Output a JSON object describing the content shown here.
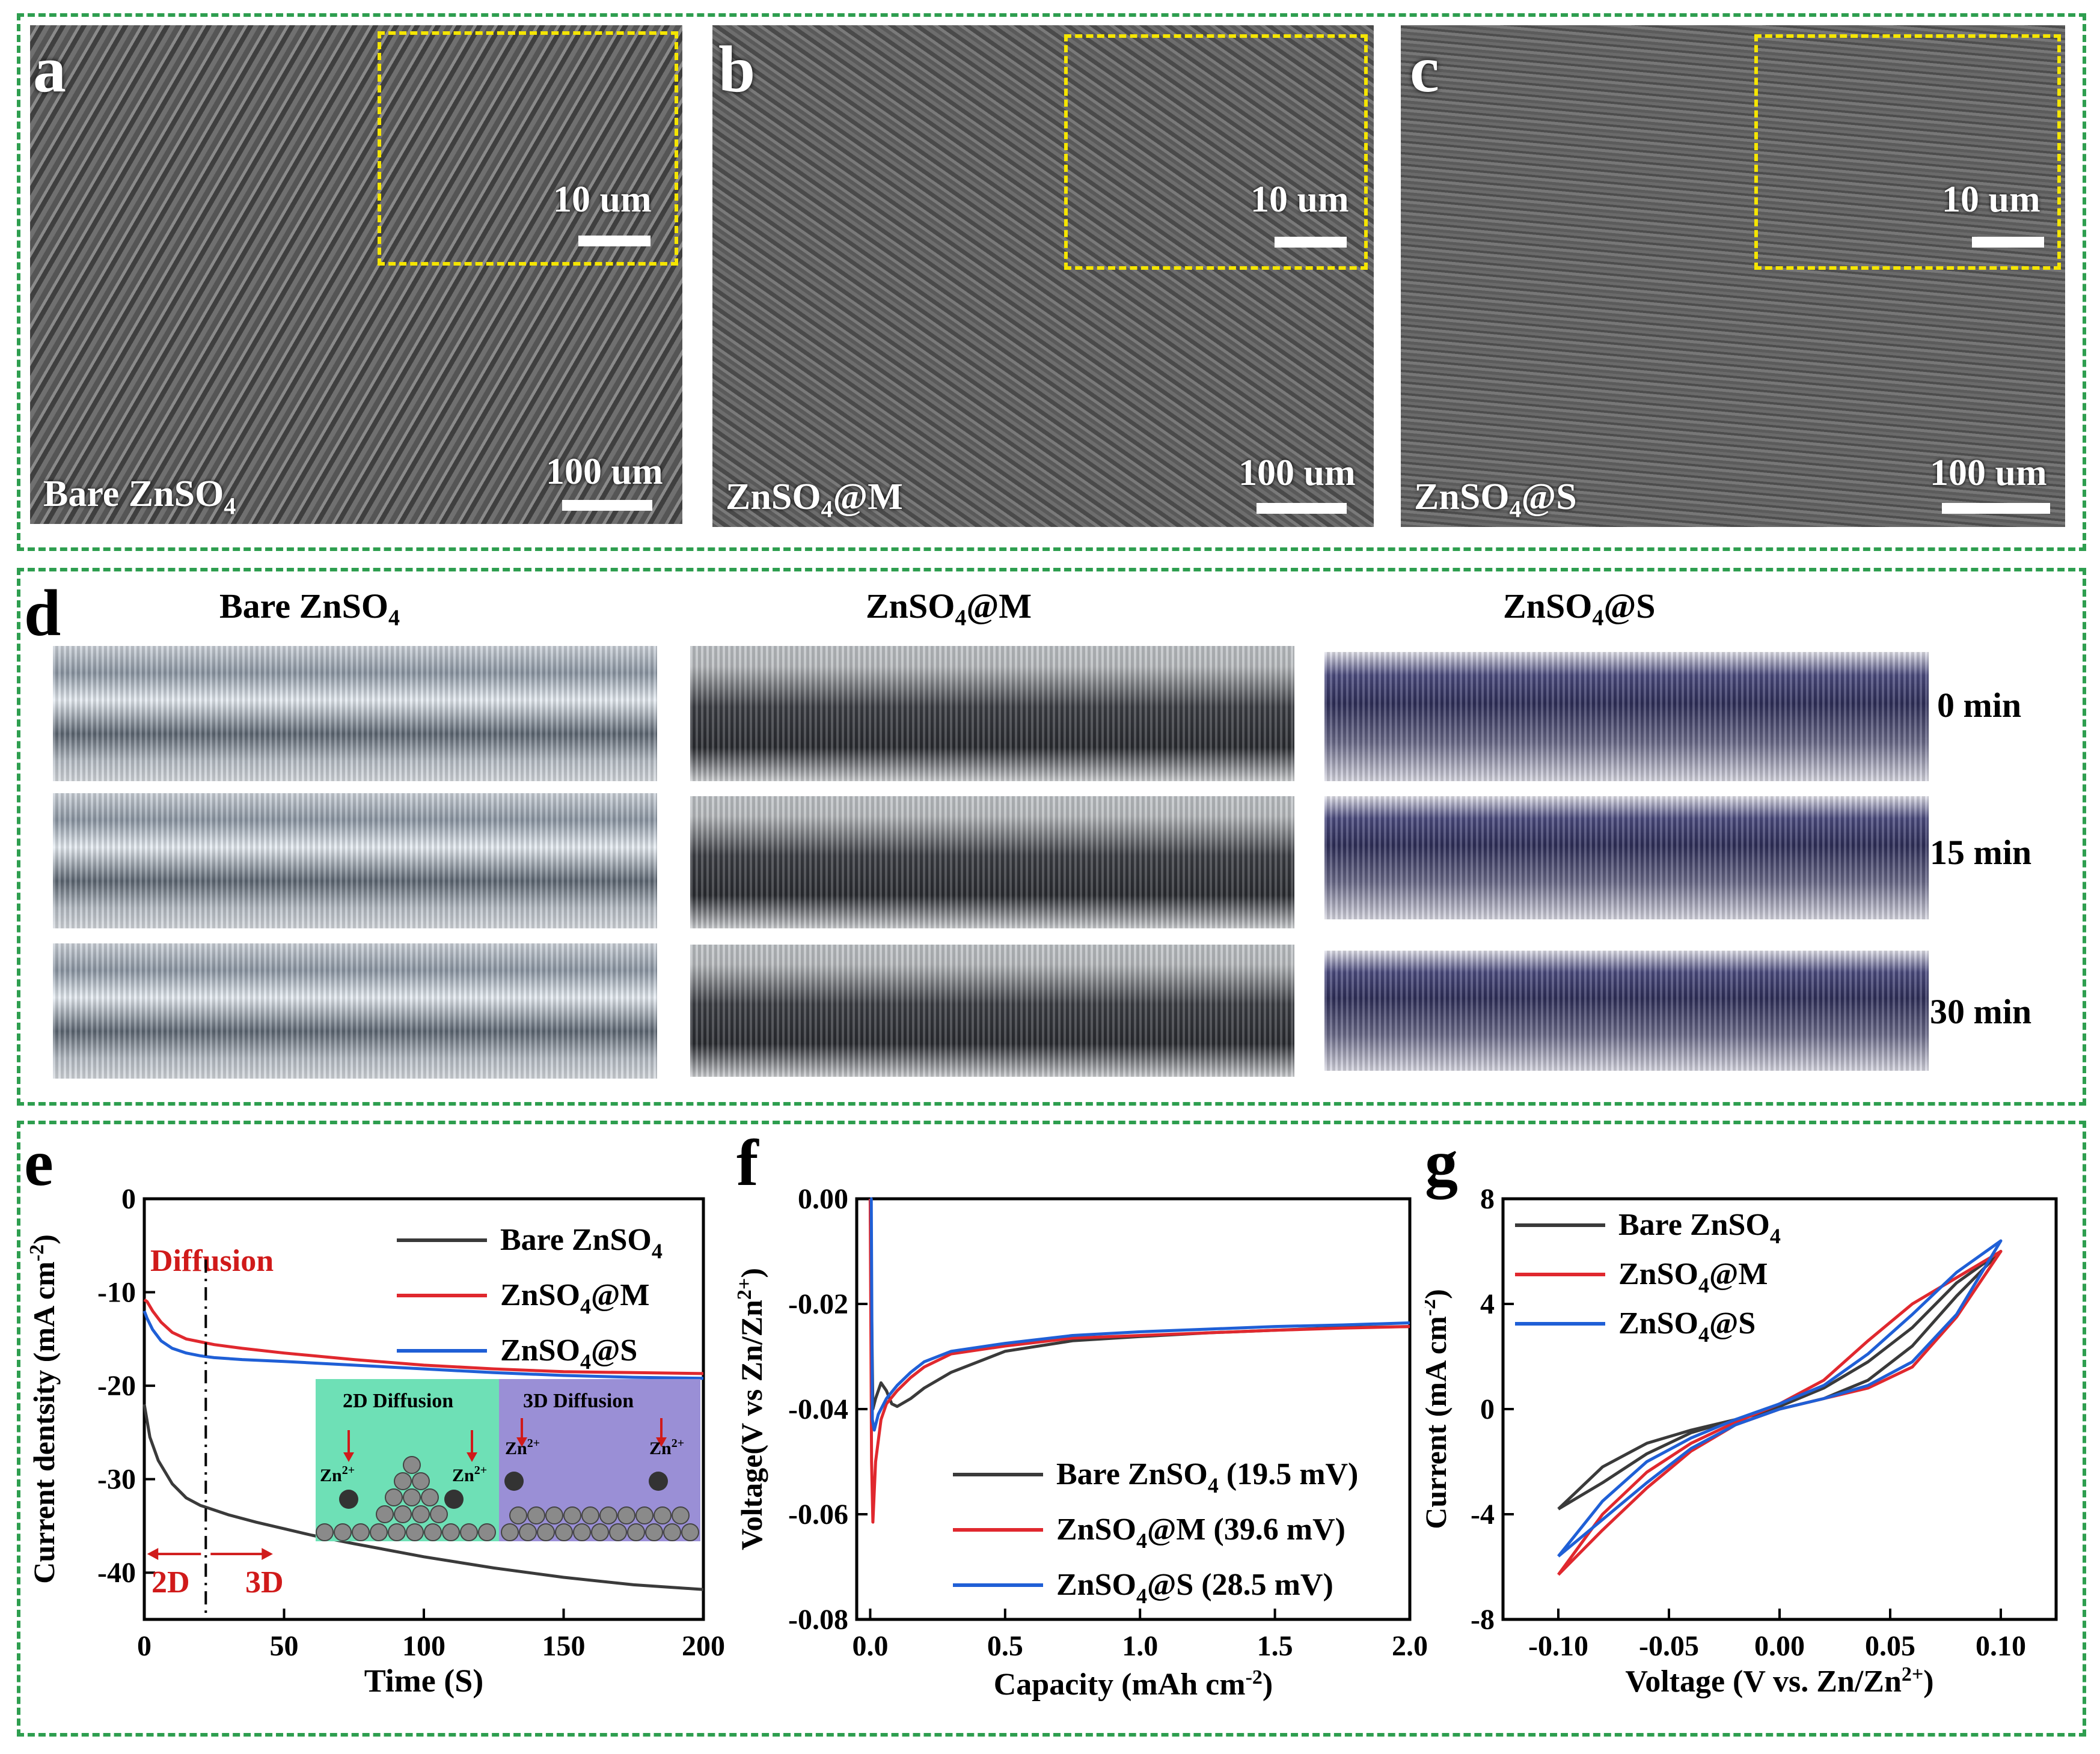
{
  "panels": {
    "a": {
      "letter": "a",
      "label": "Bare ZnSO",
      "label_sub": "4",
      "inset_scale": "10 um",
      "scale": "100 um"
    },
    "b": {
      "letter": "b",
      "label": "ZnSO",
      "label_sub": "4",
      "label_tail": "@M",
      "inset_scale": "10 um",
      "scale": "100 um"
    },
    "c": {
      "letter": "c",
      "label": "ZnSO",
      "label_sub": "4",
      "label_tail": "@S",
      "inset_scale": "10 um",
      "scale": "100 um"
    },
    "d": {
      "letter": "d",
      "columns": [
        {
          "label": "Bare ZnSO",
          "sub": "4",
          "tail": ""
        },
        {
          "label": "ZnSO",
          "sub": "4",
          "tail": "@M"
        },
        {
          "label": "ZnSO",
          "sub": "4",
          "tail": "@S"
        }
      ],
      "times": [
        "0 min",
        "15 min",
        "30 min"
      ]
    },
    "e": {
      "letter": "e"
    },
    "f": {
      "letter": "f"
    },
    "g": {
      "letter": "g"
    }
  },
  "colors": {
    "box": "#2e9e4f",
    "inset": "#f5e500",
    "bare": "#3a3a3a",
    "m": "#e0282e",
    "s": "#1f5fd6",
    "annot": "#d01a1a"
  },
  "chart_data": [
    {
      "id": "e",
      "type": "line",
      "xlabel": "Time (S)",
      "ylabel": "Current dentsity (mA cm",
      "ylabel_sup": "-2",
      "ylabel_tail": ")",
      "xlim": [
        0,
        200
      ],
      "ylim": [
        -45,
        0
      ],
      "xticks": [
        "0",
        "50",
        "100",
        "150",
        "200"
      ],
      "yticks": [
        "0",
        "-10",
        "-20",
        "-30",
        "-40"
      ],
      "annotations": {
        "diffusion": "Diffusion",
        "left": "2D",
        "right": "3D",
        "divider_x": 22
      },
      "inset": {
        "left_title": "2D Diffusion",
        "right_title": "3D Diffusion",
        "ion": "Zn",
        "ion_sup": "2+"
      },
      "legend": [
        {
          "name": "Bare ZnSO",
          "sub": "4",
          "tail": ""
        },
        {
          "name": "ZnSO",
          "sub": "4",
          "tail": "@M"
        },
        {
          "name": "ZnSO",
          "sub": "4",
          "tail": "@S"
        }
      ],
      "series": [
        {
          "key": "bare",
          "x": [
            0,
            2,
            5,
            10,
            15,
            20,
            22,
            30,
            40,
            50,
            60,
            75,
            100,
            125,
            150,
            175,
            200
          ],
          "y": [
            -22,
            -25.5,
            -28,
            -30.5,
            -32,
            -32.8,
            -33,
            -33.8,
            -34.6,
            -35.3,
            -36,
            -36.9,
            -38.3,
            -39.5,
            -40.5,
            -41.3,
            -41.8
          ]
        },
        {
          "key": "m",
          "x": [
            0,
            1,
            3,
            6,
            10,
            15,
            20,
            25,
            35,
            50,
            75,
            100,
            125,
            150,
            175,
            200
          ],
          "y": [
            -10.8,
            -11,
            -12,
            -13.2,
            -14.3,
            -15,
            -15.3,
            -15.6,
            -16,
            -16.5,
            -17.2,
            -17.8,
            -18.2,
            -18.5,
            -18.6,
            -18.7
          ]
        },
        {
          "key": "s",
          "x": [
            0,
            1,
            3,
            6,
            10,
            15,
            20,
            25,
            35,
            50,
            75,
            100,
            125,
            150,
            175,
            200
          ],
          "y": [
            -12,
            -12.8,
            -14,
            -15.2,
            -16,
            -16.5,
            -16.8,
            -17,
            -17.2,
            -17.4,
            -17.8,
            -18.2,
            -18.6,
            -18.9,
            -19.1,
            -19.2
          ]
        }
      ]
    },
    {
      "id": "f",
      "type": "line",
      "xlabel": "Capacity (mAh cm",
      "xlabel_sup": "-2",
      "xlabel_tail": ")",
      "ylabel": "Voltage(V vs Zn/Zn",
      "ylabel_sup": "2+",
      "ylabel_tail": ")",
      "xlim": [
        -0.05,
        2.0
      ],
      "ylim": [
        -0.08,
        0.0
      ],
      "xticks": [
        0.0,
        0.5,
        1.0,
        1.5,
        2.0
      ],
      "xtick_labels": [
        "0.0",
        "0.5",
        "1.0",
        "1.5",
        "2.0"
      ],
      "yticks": [
        0.0,
        -0.02,
        -0.04,
        -0.06,
        -0.08
      ],
      "ytick_labels": [
        "0.00",
        "-0.02",
        "-0.04",
        "-0.06",
        "-0.08"
      ],
      "legend": [
        {
          "name": "Bare ZnSO",
          "sub": "4",
          "tail": " (19.5 mV)"
        },
        {
          "name": "ZnSO",
          "sub": "4",
          "tail": "@M (39.6 mV)"
        },
        {
          "name": "ZnSO",
          "sub": "4",
          "tail": "@S (28.5 mV)"
        }
      ],
      "series": [
        {
          "key": "bare",
          "x": [
            0.0,
            0.01,
            0.02,
            0.04,
            0.06,
            0.08,
            0.1,
            0.15,
            0.2,
            0.3,
            0.5,
            0.75,
            1.0,
            1.25,
            1.5,
            1.75,
            2.0
          ],
          "y": [
            0.0,
            -0.04,
            -0.038,
            -0.035,
            -0.0365,
            -0.039,
            -0.0395,
            -0.038,
            -0.036,
            -0.033,
            -0.029,
            -0.027,
            -0.0262,
            -0.0255,
            -0.025,
            -0.0245,
            -0.0243
          ]
        },
        {
          "key": "m",
          "x": [
            0.0,
            0.005,
            0.01,
            0.02,
            0.04,
            0.06,
            0.1,
            0.15,
            0.2,
            0.3,
            0.5,
            0.75,
            1.0,
            1.25,
            1.5,
            1.75,
            2.0
          ],
          "y": [
            0.0,
            -0.05,
            -0.0615,
            -0.05,
            -0.042,
            -0.039,
            -0.0365,
            -0.034,
            -0.032,
            -0.0295,
            -0.028,
            -0.0265,
            -0.026,
            -0.0255,
            -0.025,
            -0.0246,
            -0.0243
          ]
        },
        {
          "key": "s",
          "x": [
            0.0,
            0.004,
            0.008,
            0.015,
            0.03,
            0.06,
            0.1,
            0.15,
            0.2,
            0.3,
            0.5,
            0.75,
            1.0,
            1.25,
            1.5,
            1.75,
            2.0
          ],
          "y": [
            0.0,
            0.0,
            -0.042,
            -0.044,
            -0.041,
            -0.038,
            -0.0355,
            -0.033,
            -0.031,
            -0.029,
            -0.0275,
            -0.026,
            -0.0253,
            -0.0248,
            -0.0243,
            -0.024,
            -0.0236
          ]
        }
      ]
    },
    {
      "id": "g",
      "type": "line",
      "xlabel": "Voltage (V vs. Zn/Zn",
      "xlabel_sup": "2+",
      "xlabel_tail": ")",
      "ylabel": "Current (mA cm",
      "ylabel_sup": "-2",
      "ylabel_tail": ")",
      "xlim": [
        -0.125,
        0.125
      ],
      "ylim": [
        -8,
        8
      ],
      "xticks": [
        -0.1,
        -0.05,
        0.0,
        0.05,
        0.1
      ],
      "xtick_labels": [
        "-0.10",
        "-0.05",
        "0.00",
        "0.05",
        "0.10"
      ],
      "yticks": [
        8,
        4,
        0,
        -4,
        -8
      ],
      "ytick_labels": [
        "8",
        "4",
        "0",
        "-4",
        "-8"
      ],
      "legend": [
        {
          "name": "Bare ZnSO",
          "sub": "4",
          "tail": ""
        },
        {
          "name": "ZnSO",
          "sub": "4",
          "tail": "@M"
        },
        {
          "name": "ZnSO",
          "sub": "4",
          "tail": "@S"
        }
      ],
      "series": [
        {
          "key": "bare",
          "x": [
            -0.1,
            -0.08,
            -0.06,
            -0.04,
            -0.02,
            0.0,
            0.02,
            0.04,
            0.06,
            0.08,
            0.1,
            0.08,
            0.06,
            0.04,
            0.02,
            0.0,
            -0.02,
            -0.04,
            -0.06,
            -0.08,
            -0.1
          ],
          "y": [
            -3.8,
            -2.8,
            -1.7,
            -0.9,
            -0.4,
            0.0,
            0.4,
            1.1,
            2.4,
            4.3,
            6.0,
            4.8,
            3.1,
            1.8,
            0.8,
            0.1,
            -0.4,
            -0.8,
            -1.3,
            -2.2,
            -3.8
          ]
        },
        {
          "key": "m",
          "x": [
            -0.1,
            -0.08,
            -0.06,
            -0.04,
            -0.02,
            0.0,
            0.02,
            0.04,
            0.06,
            0.08,
            0.1,
            0.08,
            0.06,
            0.04,
            0.02,
            0.0,
            -0.02,
            -0.04,
            -0.06,
            -0.08,
            -0.1
          ],
          "y": [
            -6.3,
            -4.6,
            -3.0,
            -1.6,
            -0.6,
            0.0,
            0.4,
            0.8,
            1.6,
            3.5,
            6.0,
            5.0,
            4.0,
            2.6,
            1.1,
            0.2,
            -0.5,
            -1.3,
            -2.4,
            -4.0,
            -6.3
          ]
        },
        {
          "key": "s",
          "x": [
            -0.1,
            -0.08,
            -0.06,
            -0.04,
            -0.02,
            0.0,
            0.02,
            0.04,
            0.06,
            0.08,
            0.1,
            0.08,
            0.06,
            0.04,
            0.02,
            0.0,
            -0.02,
            -0.04,
            -0.06,
            -0.08,
            -0.1
          ],
          "y": [
            -5.6,
            -4.2,
            -2.8,
            -1.5,
            -0.6,
            0.0,
            0.4,
            0.9,
            1.8,
            3.6,
            6.4,
            5.2,
            3.6,
            2.1,
            0.9,
            0.2,
            -0.4,
            -1.1,
            -2.0,
            -3.5,
            -5.6
          ]
        }
      ]
    }
  ]
}
